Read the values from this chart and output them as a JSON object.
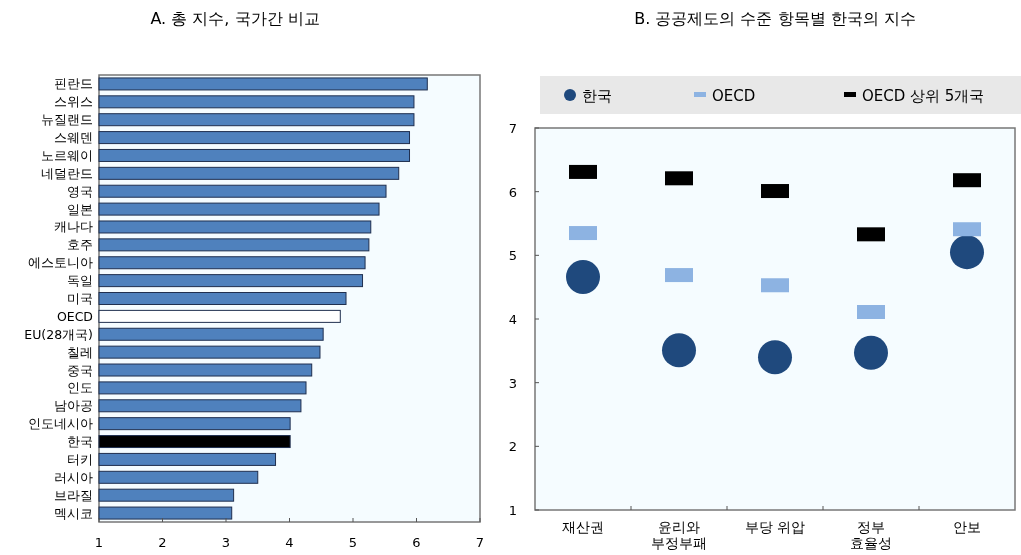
{
  "chart_data": [
    {
      "type": "bar",
      "orientation": "horizontal",
      "title": "A. 총 지수, 국가간 비교",
      "categories": [
        "핀란드",
        "스위스",
        "뉴질랜드",
        "스웨덴",
        "노르웨이",
        "네덜란드",
        "영국",
        "일본",
        "캐나다",
        "호주",
        "에스토니아",
        "독일",
        "미국",
        "OECD",
        "EU(28개국)",
        "칠레",
        "중국",
        "인도",
        "남아공",
        "인도네시아",
        "한국",
        "터키",
        "러시아",
        "브라질",
        "멕시코"
      ],
      "values": [
        6.17,
        5.96,
        5.96,
        5.89,
        5.89,
        5.72,
        5.52,
        5.41,
        5.28,
        5.25,
        5.19,
        5.15,
        4.89,
        4.8,
        4.53,
        4.48,
        4.35,
        4.26,
        4.18,
        4.01,
        4.01,
        3.78,
        3.5,
        3.12,
        3.09
      ],
      "colors": [
        "#4f81bd",
        "#4f81bd",
        "#4f81bd",
        "#4f81bd",
        "#4f81bd",
        "#4f81bd",
        "#4f81bd",
        "#4f81bd",
        "#4f81bd",
        "#4f81bd",
        "#4f81bd",
        "#4f81bd",
        "#4f81bd",
        "#ffffff",
        "#4f81bd",
        "#4f81bd",
        "#4f81bd",
        "#4f81bd",
        "#4f81bd",
        "#4f81bd",
        "#000000",
        "#4f81bd",
        "#4f81bd",
        "#4f81bd",
        "#4f81bd"
      ],
      "xlim": [
        1,
        7
      ],
      "xticks": [
        1,
        2,
        3,
        4,
        5,
        6,
        7
      ],
      "grid": false,
      "legend": false
    },
    {
      "type": "scatter",
      "title": "B. 공공제도의 수준 항목별 한국의 지수",
      "categories": [
        "재산권",
        "윤리와\n부정부패",
        "부당 위압",
        "정부\n효율성",
        "안보"
      ],
      "series": [
        {
          "name": "한국",
          "color": "#1f497d",
          "marker": "circle",
          "values": [
            4.66,
            3.51,
            3.4,
            3.47,
            5.05
          ]
        },
        {
          "name": "OECD",
          "color": "#8db3e2",
          "marker": "square",
          "values": [
            5.35,
            4.69,
            4.53,
            4.11,
            5.41
          ]
        },
        {
          "name": "OECD 상위 5개국",
          "color": "#000000",
          "marker": "square",
          "values": [
            6.31,
            6.21,
            6.01,
            5.33,
            6.18
          ]
        }
      ],
      "ylim": [
        1,
        7
      ],
      "yticks": [
        1,
        2,
        3,
        4,
        5,
        6,
        7
      ],
      "grid": false,
      "legend": "top"
    }
  ]
}
